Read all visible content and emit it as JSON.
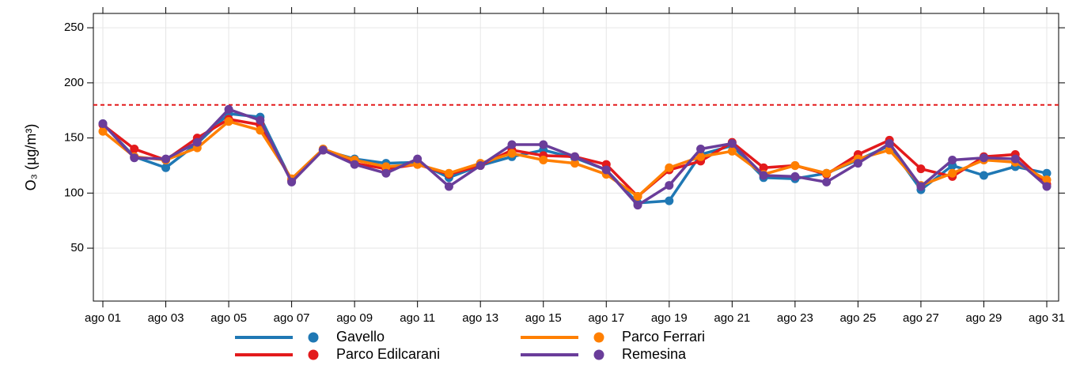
{
  "chart_data": {
    "type": "line",
    "ylabel": "O₃ (µg/m³)",
    "categories": [
      "ago 01",
      null,
      "ago 03",
      null,
      "ago 05",
      null,
      "ago 07",
      null,
      "ago 09",
      null,
      "ago 11",
      null,
      "ago 13",
      null,
      "ago 15",
      null,
      "ago 17",
      null,
      "ago 19",
      null,
      "ago 21",
      null,
      "ago 23",
      null,
      "ago 25",
      null,
      "ago 27",
      null,
      "ago 29",
      null,
      "ago 31"
    ],
    "series": [
      {
        "name": "Gavello",
        "color": "#1f78b4",
        "values": [
          163,
          133,
          123,
          145,
          172,
          169,
          111,
          139,
          131,
          127,
          128,
          114,
          125,
          133,
          139,
          132,
          121,
          91,
          93,
          135,
          143,
          114,
          113,
          118,
          130,
          143,
          103,
          125,
          116,
          124,
          118
        ]
      },
      {
        "name": "Parco Edilcarani",
        "color": "#e31a1c",
        "values": [
          162,
          140,
          130,
          150,
          167,
          162,
          112,
          139,
          127,
          122,
          126,
          117,
          125,
          139,
          134,
          133,
          126,
          97,
          121,
          129,
          146,
          123,
          125,
          117,
          135,
          148,
          122,
          115,
          133,
          135,
          108
        ]
      },
      {
        "name": "Parco Ferrari",
        "color": "#ff7f00",
        "values": [
          156,
          133,
          130,
          141,
          165,
          157,
          113,
          140,
          130,
          124,
          126,
          118,
          127,
          136,
          130,
          127,
          117,
          97,
          123,
          133,
          138,
          117,
          125,
          118,
          131,
          139,
          107,
          118,
          130,
          128,
          112
        ]
      },
      {
        "name": "Remesina",
        "color": "#6a3d9a",
        "values": [
          163,
          132,
          131,
          146,
          176,
          166,
          110,
          139,
          126,
          118,
          131,
          106,
          125,
          144,
          144,
          133,
          121,
          89,
          107,
          140,
          145,
          116,
          115,
          110,
          127,
          145,
          106,
          130,
          132,
          131,
          106
        ]
      }
    ],
    "reference_line": {
      "value": 180,
      "color": "#e31a1c"
    },
    "ylim": [
      2,
      263
    ],
    "yticks": [
      50,
      100,
      150,
      200,
      250
    ],
    "grid": true
  }
}
